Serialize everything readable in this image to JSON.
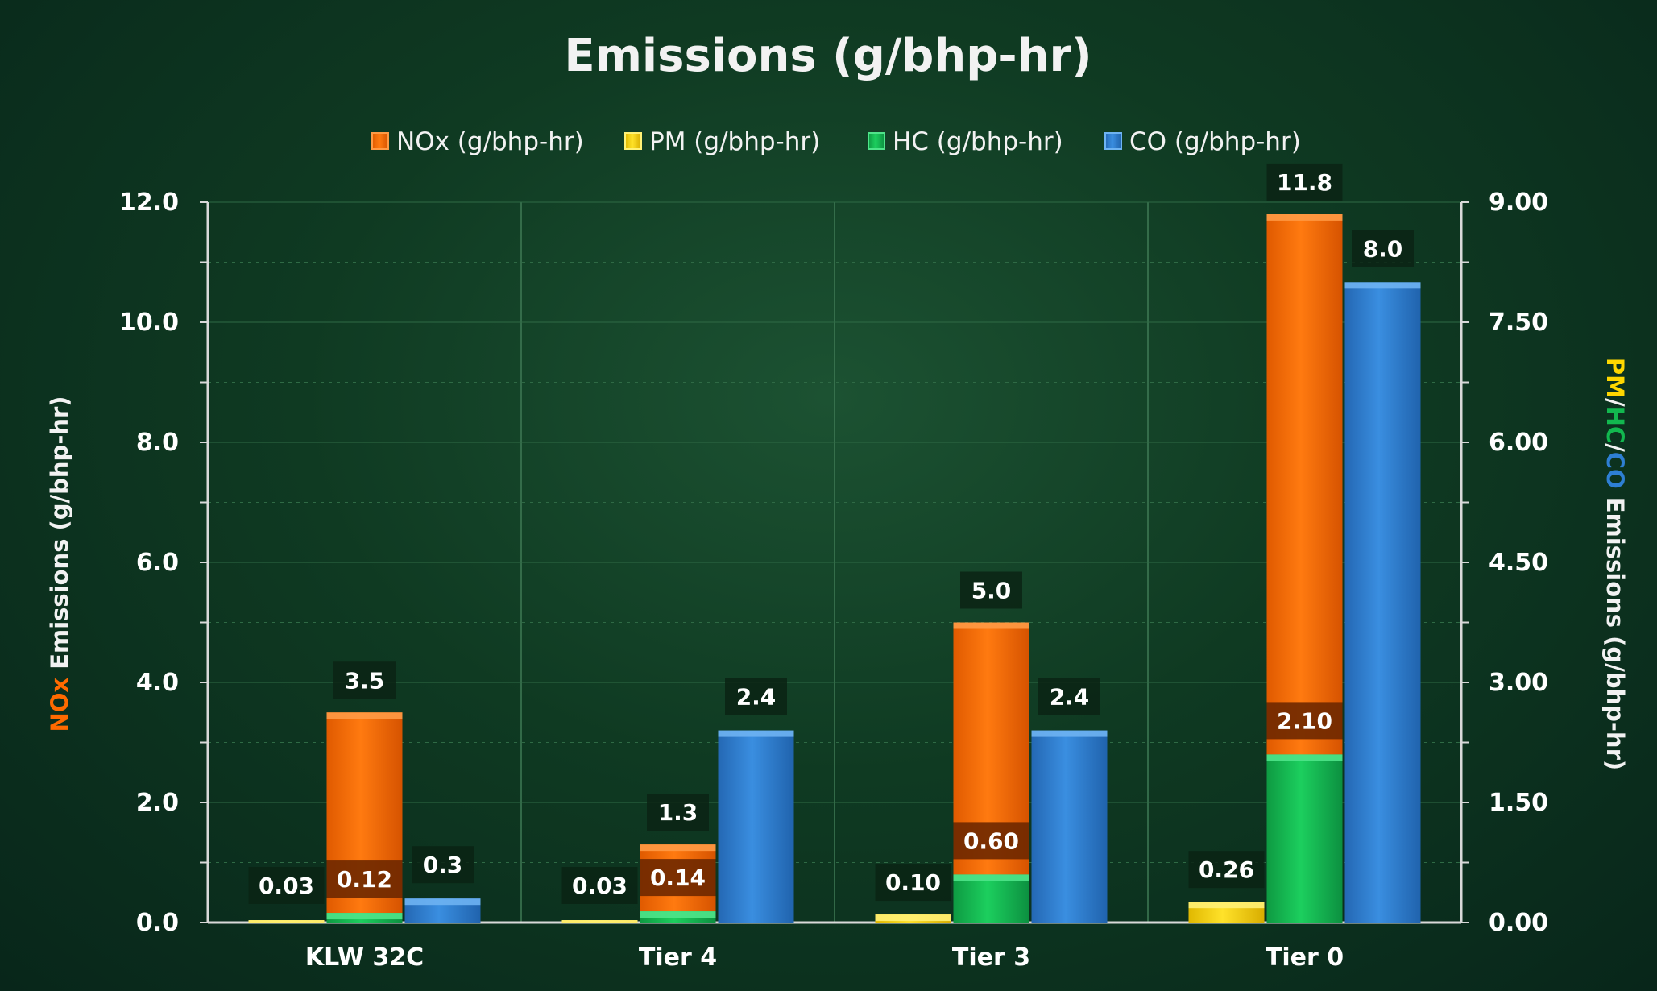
{
  "chart_data": {
    "type": "bar",
    "title": "Emissions (g/bhp-hr)",
    "categories": [
      "KLW 32C",
      "Tier 4",
      "Tier 3",
      "Tier 0"
    ],
    "series": [
      {
        "name": "NOx (g/bhp-hr)",
        "axis": "left",
        "color": "#ff6a00",
        "values": [
          3.5,
          1.3,
          5.0,
          11.8
        ],
        "labels": [
          "3.5",
          "1.3",
          "5.0",
          "11.8"
        ]
      },
      {
        "name": "PM (g/bhp-hr)",
        "axis": "right",
        "color": "#ffd700",
        "values": [
          0.03,
          0.03,
          0.1,
          0.26
        ],
        "labels": [
          "0.03",
          "0.03",
          "0.10",
          "0.26"
        ]
      },
      {
        "name": "HC (g/bhp-hr)",
        "axis": "right",
        "color": "#12b84f",
        "values": [
          0.12,
          0.14,
          0.6,
          2.1
        ],
        "labels": [
          "0.12",
          "0.14",
          "0.60",
          "2.10"
        ]
      },
      {
        "name": "CO (g/bhp-hr)",
        "axis": "right",
        "color": "#2e7fd4",
        "values": [
          0.3,
          2.4,
          2.4,
          8.0
        ],
        "labels": [
          "0.3",
          "2.4",
          "2.4",
          "8.0"
        ]
      }
    ],
    "y_left": {
      "ylim": [
        0,
        12
      ],
      "ticks": [
        "0.0",
        "2.0",
        "4.0",
        "6.0",
        "8.0",
        "10.0",
        "12.0"
      ],
      "label_parts": [
        "NOx",
        " Emissions (g/bhp-hr)"
      ]
    },
    "y_right": {
      "ylim": [
        0,
        9
      ],
      "ticks": [
        "0.00",
        "1.50",
        "3.00",
        "4.50",
        "6.00",
        "7.50",
        "9.00"
      ],
      "label_parts": [
        "PM",
        "/",
        "HC",
        "/",
        "CO",
        " Emissions (g/bhp-hr)"
      ]
    },
    "legend_position": "top-center",
    "grid": true
  },
  "colors": {
    "nox": "#ff6a00",
    "pm": "#ffd700",
    "hc": "#12b84f",
    "co": "#2e7fd4",
    "axis_title_white": "#f2f2f2"
  }
}
